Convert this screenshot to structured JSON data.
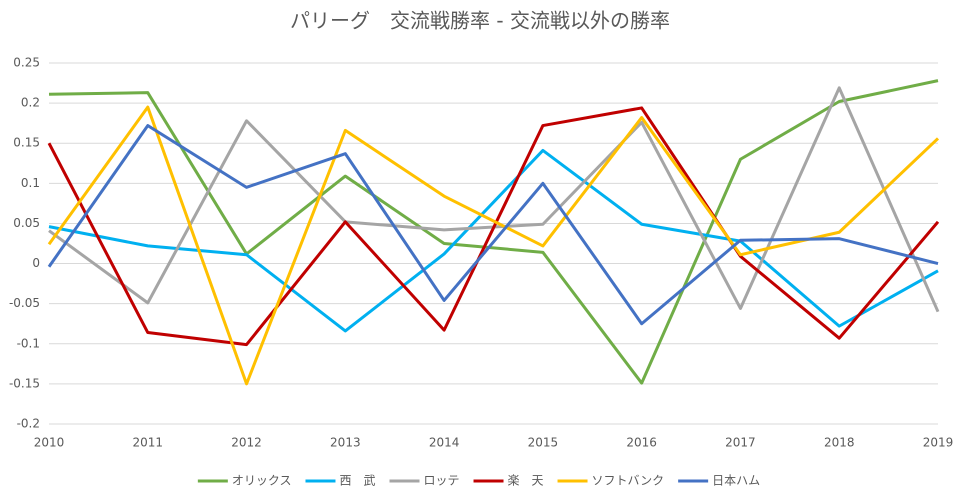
{
  "chart_data": {
    "type": "line",
    "title": "パリーグ　交流戦勝率 - 交流戦以外の勝率",
    "x": [
      2010,
      2011,
      2012,
      2013,
      2014,
      2015,
      2016,
      2017,
      2018,
      2019
    ],
    "xlim": [
      2010,
      2019
    ],
    "xticks": [
      2010,
      2011,
      2012,
      2013,
      2014,
      2015,
      2016,
      2017,
      2018,
      2019
    ],
    "ylim": [
      -0.2,
      0.25
    ],
    "yticks": [
      0.25,
      0.2,
      0.15,
      0.1,
      0.05,
      0,
      -0.05,
      -0.1,
      -0.15,
      -0.2
    ],
    "grid": true,
    "legend": "bottom",
    "series": [
      {
        "name": "オリックス",
        "color": "#70ad47",
        "values": [
          0.211,
          0.213,
          0.012,
          0.109,
          0.025,
          0.014,
          -0.149,
          0.13,
          0.202,
          0.228
        ]
      },
      {
        "name": "西　武",
        "color": "#00b0f0",
        "values": [
          0.046,
          0.022,
          0.011,
          -0.084,
          0.012,
          0.141,
          0.049,
          0.028,
          -0.078,
          -0.009
        ]
      },
      {
        "name": "ロッテ",
        "color": "#a5a5a5",
        "values": [
          0.041,
          -0.049,
          0.178,
          0.052,
          0.042,
          0.049,
          0.176,
          -0.056,
          0.219,
          -0.06
        ]
      },
      {
        "name": "楽　天",
        "color": "#c00000",
        "values": [
          0.15,
          -0.086,
          -0.101,
          0.052,
          -0.083,
          0.172,
          0.194,
          0.009,
          -0.093,
          0.052
        ]
      },
      {
        "name": "ソフトバンク",
        "color": "#ffc000",
        "values": [
          0.024,
          0.195,
          -0.15,
          0.166,
          0.084,
          0.022,
          0.182,
          0.011,
          0.039,
          0.156
        ]
      },
      {
        "name": "日本ハム",
        "color": "#4472c4",
        "values": [
          -0.004,
          0.172,
          0.095,
          0.137,
          -0.046,
          0.1,
          -0.075,
          0.029,
          0.031,
          0
        ]
      }
    ]
  }
}
